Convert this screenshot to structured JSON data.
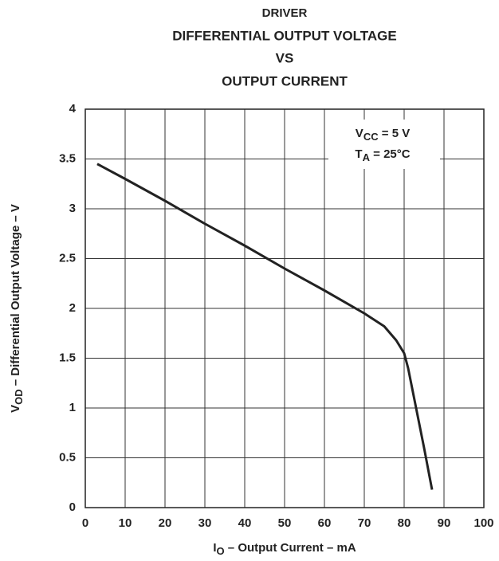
{
  "chart_data": {
    "type": "line",
    "title_lines": [
      "DRIVER",
      "DIFFERENTIAL OUTPUT VOLTAGE",
      "VS",
      "OUTPUT CURRENT"
    ],
    "x_label": {
      "main": "I",
      "sub": "O",
      "rest": " – Output Current – mA"
    },
    "y_label": {
      "main": "V",
      "sub": "OD",
      "rest": " – Differential Output Voltage – V"
    },
    "annotations": [
      {
        "main": "V",
        "sub": "CC",
        "rest": " = 5 V"
      },
      {
        "main": "T",
        "sub": "A",
        "rest": " = 25°C"
      }
    ],
    "x": [
      3,
      10,
      20,
      30,
      40,
      50,
      60,
      70,
      75,
      78,
      80,
      81,
      83,
      85,
      87
    ],
    "series": [
      {
        "color": "#222222",
        "values": [
          3.45,
          3.3,
          3.08,
          2.85,
          2.63,
          2.4,
          2.18,
          1.95,
          1.82,
          1.68,
          1.55,
          1.4,
          1.0,
          0.6,
          0.18
        ]
      }
    ],
    "xlim": [
      0,
      100
    ],
    "xticks": [
      0,
      10,
      20,
      30,
      40,
      50,
      60,
      70,
      80,
      90,
      100
    ],
    "ylim": [
      0,
      4
    ],
    "yticks": [
      0,
      0.5,
      1,
      1.5,
      2,
      2.5,
      3,
      3.5,
      4
    ],
    "grid": true
  }
}
